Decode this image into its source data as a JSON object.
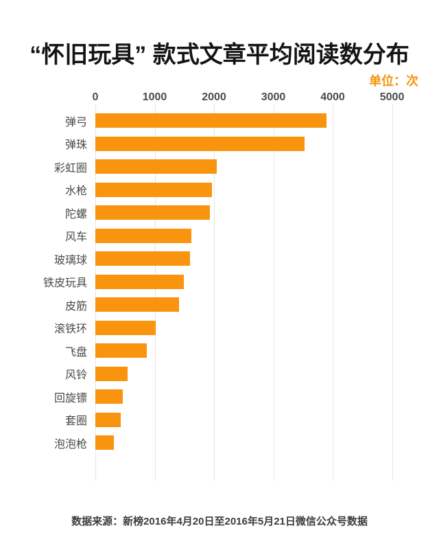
{
  "title": "“怀旧玩具” 款式文章平均阅读数分布",
  "unit_label": "单位：次",
  "source": "数据来源：新榜2016年4月20日至2016年5月21日微信公众号数据",
  "colors": {
    "accent": "#F8940D",
    "gridline": "#E4E4E4",
    "title_text": "#141414",
    "label_text": "#4A4A4A",
    "tick_text": "#4B4B4B",
    "footer_text": "#3D3D3D"
  },
  "chart_data": {
    "type": "bar",
    "orientation": "horizontal",
    "title": "“怀旧玩具” 款式文章平均阅读数分布",
    "unit": "次",
    "categories": [
      "弹弓",
      "弹珠",
      "彩虹圈",
      "水枪",
      "陀螺",
      "风车",
      "玻璃球",
      "铁皮玩具",
      "皮筋",
      "滚铁环",
      "飞盘",
      "风铃",
      "回旋镖",
      "套圈",
      "泡泡枪"
    ],
    "values": [
      3900,
      3520,
      2050,
      1970,
      1930,
      1620,
      1600,
      1490,
      1410,
      1020,
      870,
      540,
      460,
      430,
      310
    ],
    "xlabel": "",
    "ylabel": "",
    "xlim": [
      0,
      5000
    ],
    "ticks": [
      0,
      1000,
      2000,
      3000,
      4000,
      5000
    ],
    "grid": "vertical",
    "legend": "none",
    "bar_color": "#F8940D"
  }
}
